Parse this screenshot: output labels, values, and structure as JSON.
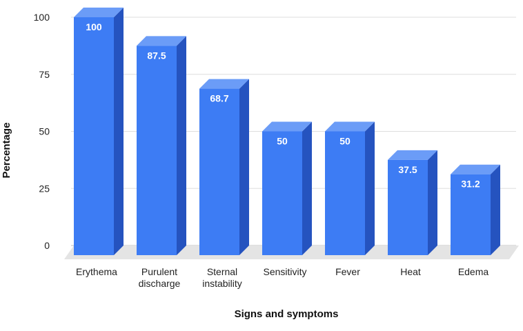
{
  "chart_data": {
    "type": "bar",
    "style": "3d-columns",
    "title": "",
    "xlabel": "Signs and symptoms",
    "ylabel": "Percentage",
    "categories": [
      [
        "Erythema"
      ],
      [
        "Purulent",
        "discharge"
      ],
      [
        "Sternal",
        "instability"
      ],
      [
        "Sensitivity"
      ],
      [
        "Fever"
      ],
      [
        "Heat"
      ],
      [
        "Edema"
      ]
    ],
    "values": [
      100,
      87.5,
      68.7,
      50,
      50,
      37.5,
      31.2
    ],
    "data_labels": [
      "100",
      "87.5",
      "68.7",
      "50",
      "50",
      "37.5",
      "31.2"
    ],
    "ylim": [
      0,
      100
    ],
    "yticks": [
      0,
      25,
      50,
      75,
      100
    ],
    "grid": true,
    "legend": "none",
    "colors": {
      "bar_front": "#3d7cf4",
      "bar_top": "#6b9cf7",
      "bar_side": "#2553bf",
      "floor": "#e4e4e4",
      "grid": "#dddddd"
    }
  }
}
